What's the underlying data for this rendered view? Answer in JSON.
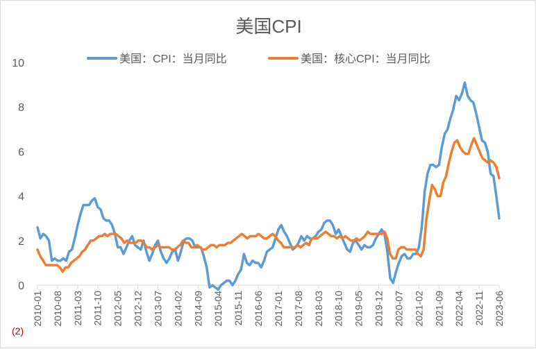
{
  "chart_data": {
    "type": "line",
    "title": "美国CPI",
    "note": "(2)",
    "ylim": [
      0,
      10
    ],
    "yticks": [
      "0",
      "2",
      "4",
      "6",
      "8",
      "10"
    ],
    "x_tick_labels": [
      "2010-01",
      "2010-08",
      "2011-03",
      "2011-10",
      "2012-05",
      "2012-12",
      "2013-07",
      "2014-02",
      "2014-09",
      "2015-04",
      "2015-11",
      "2016-06",
      "2017-01",
      "2017-08",
      "2018-03",
      "2018-10",
      "2019-05",
      "2019-12",
      "2020-07",
      "2021-02",
      "2021-09",
      "2022-04",
      "2022-11",
      "2023-06"
    ],
    "grid": false,
    "legend_position": "top",
    "series": [
      {
        "name": "美国：CPI：当月同比",
        "color": "#5b9bd5",
        "values": [
          2.6,
          2.1,
          2.3,
          2.2,
          2.0,
          1.1,
          1.2,
          1.1,
          1.1,
          1.2,
          1.1,
          1.5,
          1.6,
          2.1,
          2.7,
          3.2,
          3.6,
          3.6,
          3.6,
          3.8,
          3.9,
          3.5,
          3.4,
          3.0,
          2.9,
          2.9,
          2.7,
          2.3,
          1.7,
          1.7,
          1.4,
          1.7,
          2.0,
          2.2,
          1.8,
          1.7,
          1.6,
          2.0,
          1.5,
          1.1,
          1.4,
          1.8,
          2.0,
          1.5,
          1.2,
          1.0,
          1.2,
          1.5,
          1.6,
          1.1,
          1.5,
          2.0,
          2.1,
          2.1,
          2.0,
          1.7,
          1.7,
          1.7,
          1.3,
          0.8,
          -0.1,
          0.0,
          -0.1,
          -0.2,
          0.0,
          0.1,
          0.2,
          0.2,
          0.0,
          0.2,
          0.5,
          0.7,
          1.4,
          1.0,
          0.9,
          1.1,
          1.0,
          1.0,
          0.8,
          1.1,
          1.5,
          1.6,
          1.7,
          2.1,
          2.5,
          2.7,
          2.4,
          2.2,
          1.9,
          1.6,
          1.7,
          1.9,
          2.2,
          2.0,
          2.2,
          2.1,
          2.1,
          2.2,
          2.4,
          2.5,
          2.8,
          2.9,
          2.9,
          2.7,
          2.3,
          2.5,
          2.2,
          1.9,
          1.6,
          1.5,
          1.9,
          2.0,
          1.8,
          1.6,
          1.8,
          1.7,
          1.7,
          1.8,
          2.1,
          2.3,
          2.5,
          2.3,
          1.5,
          0.3,
          0.1,
          0.6,
          1.0,
          1.3,
          1.4,
          1.2,
          1.2,
          1.4,
          1.4,
          1.7,
          2.6,
          4.2,
          5.0,
          5.4,
          5.4,
          5.3,
          5.4,
          6.2,
          6.8,
          7.0,
          7.5,
          7.9,
          8.5,
          8.3,
          8.6,
          9.1,
          8.5,
          8.3,
          8.2,
          7.7,
          7.1,
          6.5,
          6.4,
          6.0,
          5.0,
          4.9,
          4.0,
          3.0
        ]
      },
      {
        "name": "美国：核心CPI：当月同比",
        "color": "#ed7d31",
        "values": [
          1.6,
          1.3,
          1.1,
          0.9,
          0.9,
          0.9,
          0.9,
          0.9,
          0.8,
          0.6,
          0.8,
          0.8,
          1.0,
          1.1,
          1.2,
          1.3,
          1.5,
          1.6,
          1.8,
          2.0,
          2.0,
          2.1,
          2.2,
          2.2,
          2.3,
          2.2,
          2.3,
          2.3,
          2.3,
          2.2,
          2.1,
          1.9,
          2.0,
          1.9,
          1.9,
          1.9,
          2.0,
          2.0,
          1.9,
          1.7,
          1.7,
          1.6,
          1.7,
          1.8,
          1.7,
          1.7,
          1.7,
          1.7,
          1.6,
          1.6,
          1.7,
          1.8,
          2.0,
          1.9,
          1.9,
          1.7,
          1.7,
          1.8,
          1.7,
          1.6,
          1.6,
          1.7,
          1.8,
          1.8,
          1.7,
          1.8,
          1.8,
          1.8,
          1.9,
          1.9,
          2.0,
          2.1,
          2.2,
          2.3,
          2.2,
          2.1,
          2.2,
          2.2,
          2.2,
          2.3,
          2.2,
          2.1,
          2.1,
          2.2,
          2.3,
          2.2,
          2.0,
          1.9,
          1.7,
          1.7,
          1.7,
          1.7,
          1.7,
          1.8,
          1.7,
          1.8,
          1.9,
          1.8,
          2.1,
          2.1,
          2.1,
          2.2,
          2.3,
          2.4,
          2.3,
          2.2,
          2.2,
          2.1,
          2.2,
          2.1,
          2.2,
          2.1,
          2.0,
          2.0,
          2.1,
          2.0,
          2.1,
          2.2,
          2.4,
          2.3,
          2.3,
          2.3,
          2.3,
          2.3,
          2.4,
          2.1,
          1.4,
          1.2,
          1.2,
          1.6,
          1.7,
          1.7,
          1.6,
          1.6,
          1.6,
          1.6,
          1.4,
          1.3,
          1.6,
          3.0,
          3.8,
          4.5,
          4.3,
          4.0,
          4.0,
          4.6,
          4.9,
          5.5,
          6.0,
          6.4,
          6.5,
          6.2,
          6.0,
          5.9,
          5.9,
          6.3,
          6.6,
          6.3,
          6.0,
          5.7,
          5.6,
          5.5,
          5.6,
          5.5,
          5.3,
          4.8
        ]
      }
    ]
  }
}
